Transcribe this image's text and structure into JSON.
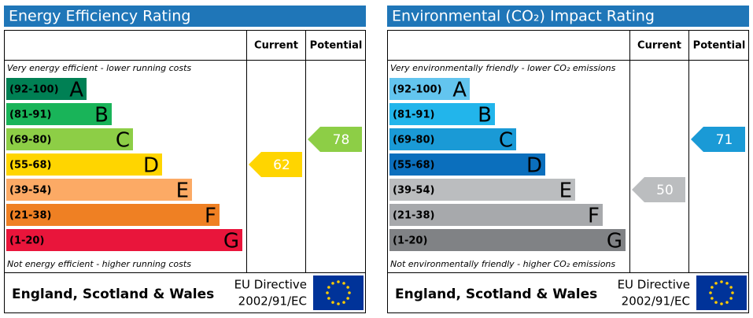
{
  "panels": [
    {
      "title": "Energy Efficiency Rating",
      "columns": [
        "Current",
        "Potential"
      ],
      "top_note": "Very energy efficient - lower running costs",
      "bottom_note": "Not energy efficient - higher running costs",
      "bands": [
        {
          "range": "(92-100)",
          "letter": "A",
          "color": "#008054"
        },
        {
          "range": "(81-91)",
          "letter": "B",
          "color": "#19b459"
        },
        {
          "range": "(69-80)",
          "letter": "C",
          "color": "#8dce46"
        },
        {
          "range": "(55-68)",
          "letter": "D",
          "color": "#ffd500"
        },
        {
          "range": "(39-54)",
          "letter": "E",
          "color": "#fcaa65"
        },
        {
          "range": "(21-38)",
          "letter": "F",
          "color": "#ef8023"
        },
        {
          "range": "(1-20)",
          "letter": "G",
          "color": "#e9153b"
        }
      ],
      "current": 62,
      "potential": 78,
      "footer": {
        "region": "England, Scotland & Wales",
        "directive": "EU Directive",
        "directive_number": "2002/91/EC"
      }
    },
    {
      "title": "Environmental (CO₂) Impact Rating",
      "columns": [
        "Current",
        "Potential"
      ],
      "top_note": "Very environmentally friendly - lower CO₂ emissions",
      "bottom_note": "Not environmentally friendly - higher CO₂ emissions",
      "bands": [
        {
          "range": "(92-100)",
          "letter": "A",
          "color": "#63c5ef"
        },
        {
          "range": "(81-91)",
          "letter": "B",
          "color": "#22b5eb"
        },
        {
          "range": "(69-80)",
          "letter": "C",
          "color": "#1a9ad6"
        },
        {
          "range": "(55-68)",
          "letter": "D",
          "color": "#0b6fbd"
        },
        {
          "range": "(39-54)",
          "letter": "E",
          "color": "#bbbdbf"
        },
        {
          "range": "(21-38)",
          "letter": "F",
          "color": "#a7a9ac"
        },
        {
          "range": "(1-20)",
          "letter": "G",
          "color": "#808285"
        }
      ],
      "current": 50,
      "potential": 71,
      "footer": {
        "region": "England, Scotland & Wales",
        "directive": "EU Directive",
        "directive_number": "2002/91/EC"
      }
    }
  ]
}
